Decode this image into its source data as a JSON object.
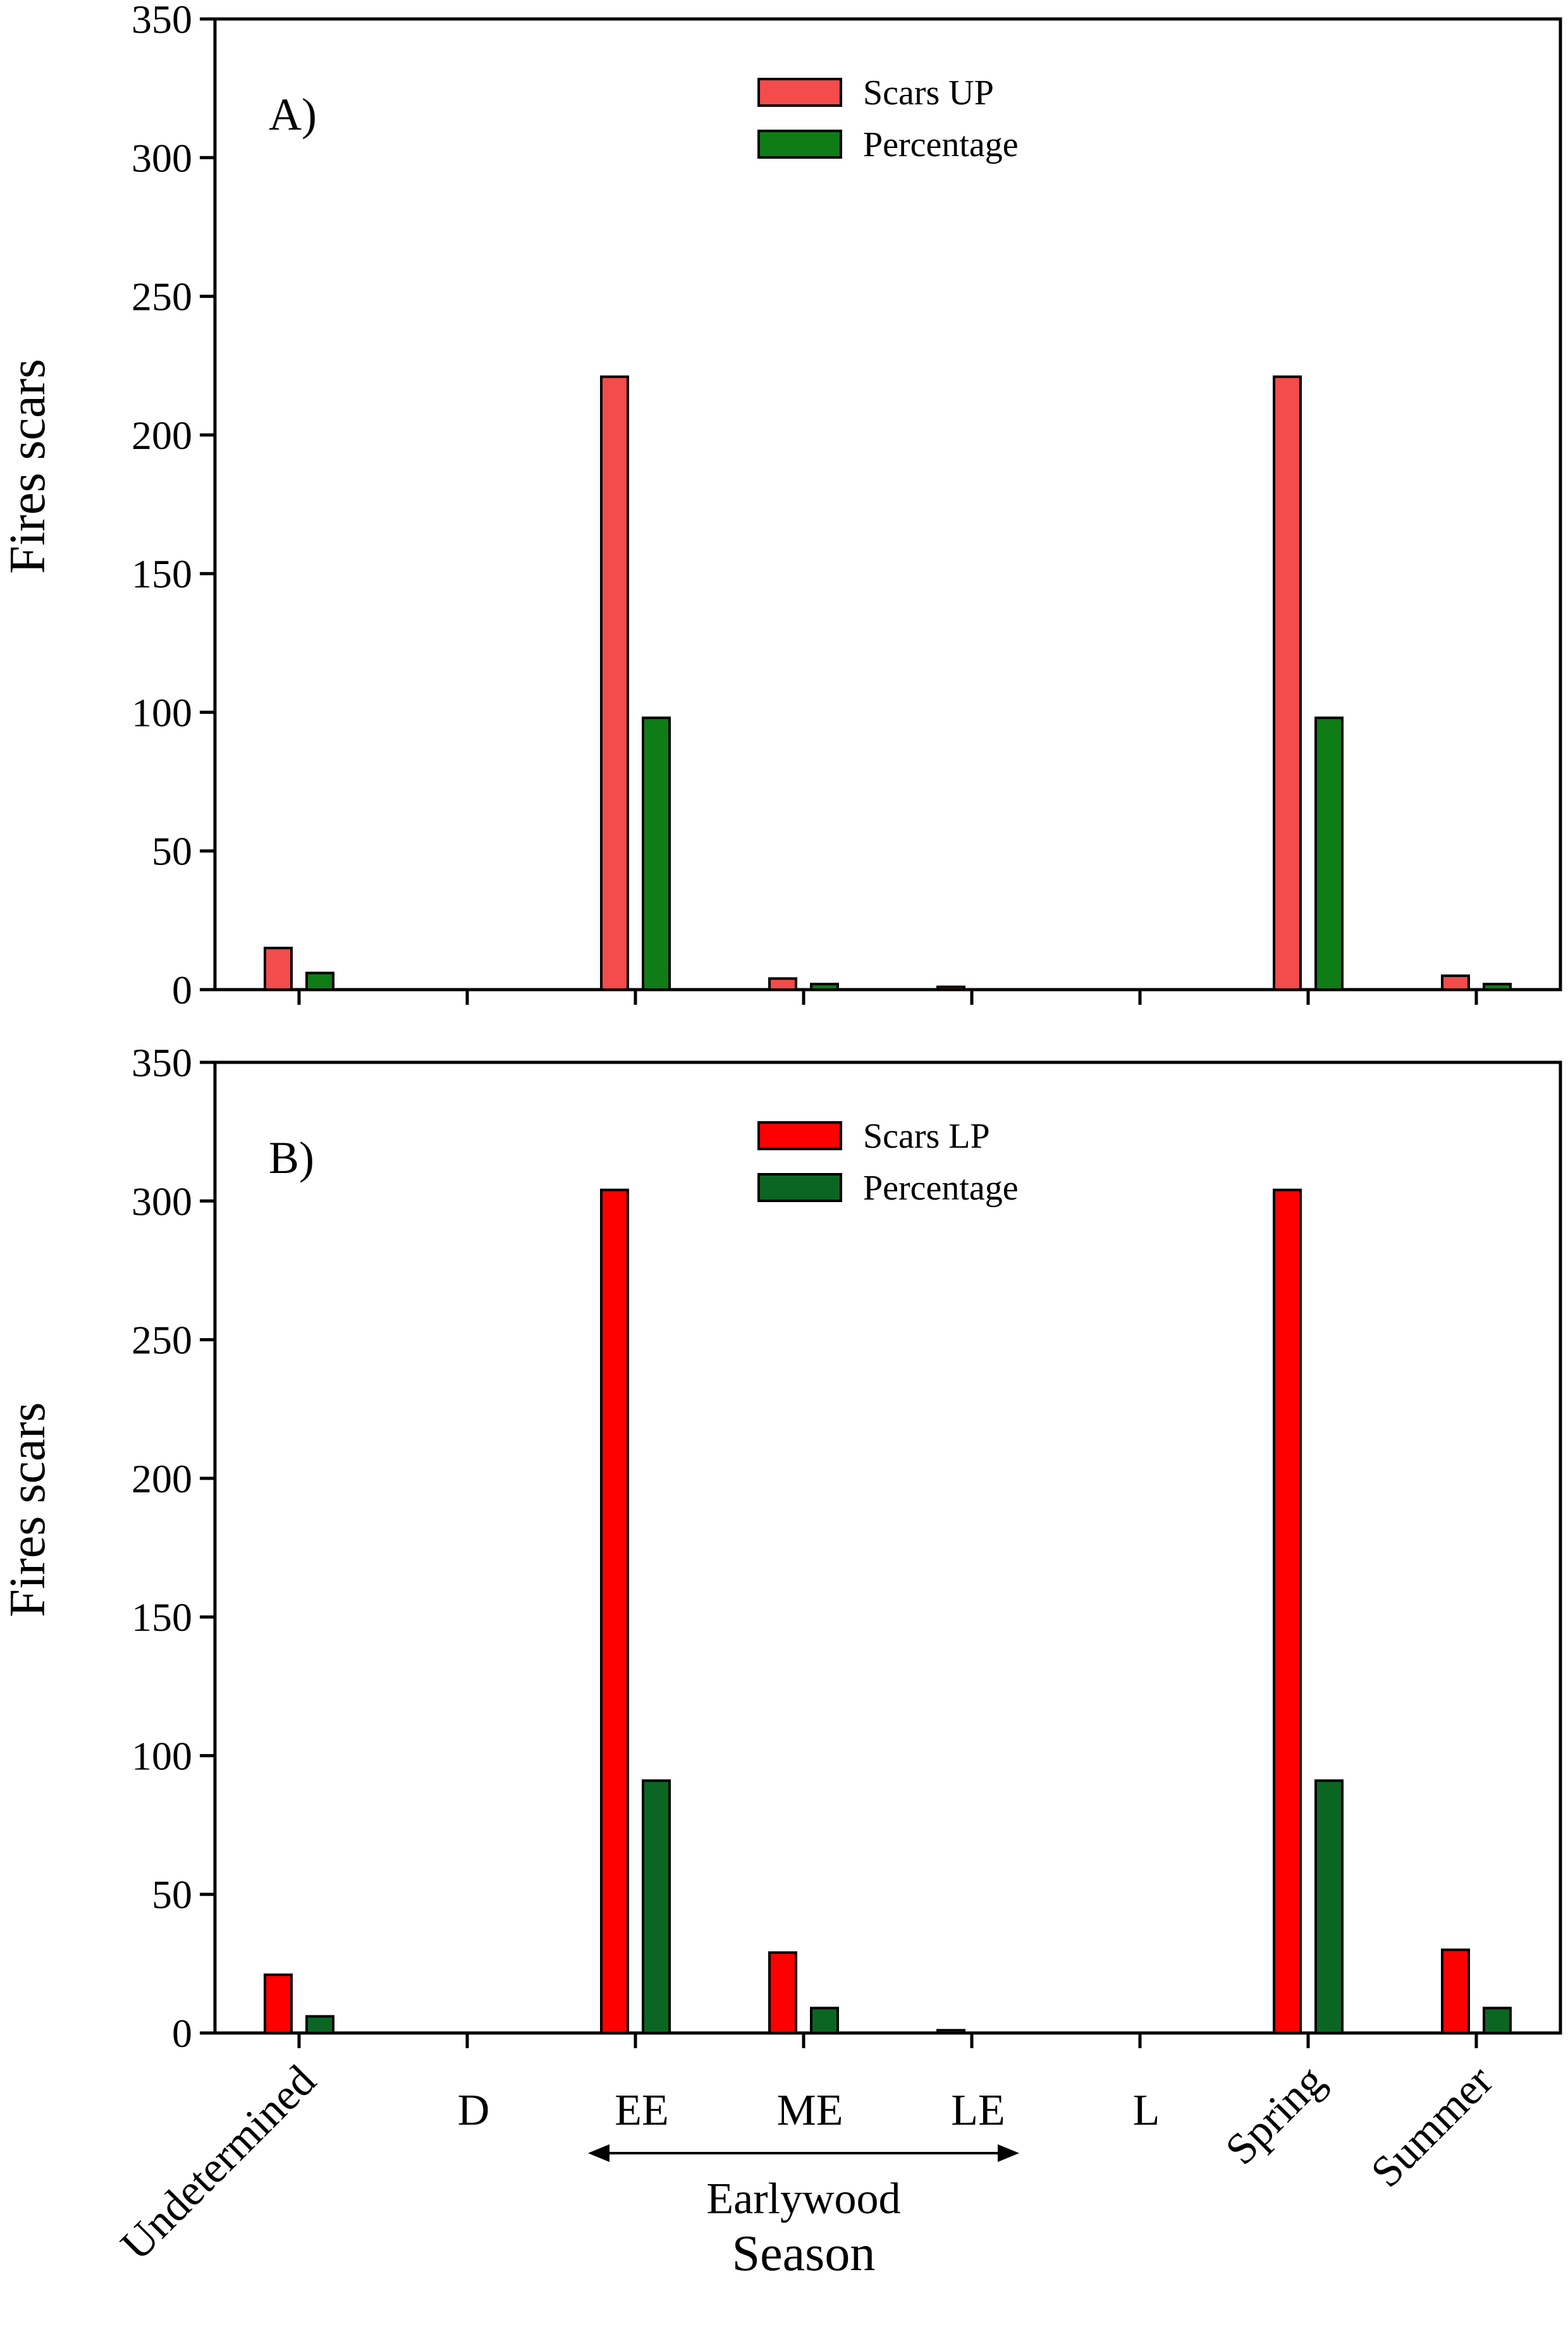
{
  "chart_data": [
    {
      "type": "bar",
      "panel_label": "A)",
      "categories": [
        "Undetermined",
        "D",
        "EE",
        "ME",
        "LE",
        "L",
        "Spring",
        "Summer"
      ],
      "series": [
        {
          "name": "Scars UP",
          "color": "#f44b4b",
          "values": [
            15,
            0,
            221,
            4,
            1,
            0,
            221,
            5
          ]
        },
        {
          "name": "Percentage",
          "color": "#0f7d16",
          "values": [
            6,
            0,
            98,
            2,
            0,
            0,
            98,
            2
          ]
        }
      ],
      "ylabel": "Fires scars",
      "ylim": [
        0,
        350
      ],
      "yticks": [
        0,
        50,
        100,
        150,
        200,
        250,
        300,
        350
      ],
      "legend": "top-center",
      "grid": false
    },
    {
      "type": "bar",
      "panel_label": "B)",
      "categories": [
        "Undetermined",
        "D",
        "EE",
        "ME",
        "LE",
        "L",
        "Spring",
        "Summer"
      ],
      "series": [
        {
          "name": "Scars LP",
          "color": "#ff0000",
          "values": [
            21,
            0,
            304,
            29,
            1,
            0,
            304,
            30
          ]
        },
        {
          "name": "Percentage",
          "color": "#0b6623",
          "values": [
            6,
            0,
            91,
            9,
            0,
            0,
            91,
            9
          ]
        }
      ],
      "ylabel": "Fires scars",
      "xlabel": "Season",
      "ylim": [
        0,
        350
      ],
      "yticks": [
        0,
        50,
        100,
        150,
        200,
        250,
        300,
        350
      ],
      "legend": "top-center",
      "grid": false,
      "annotation": "Earlywood"
    }
  ]
}
